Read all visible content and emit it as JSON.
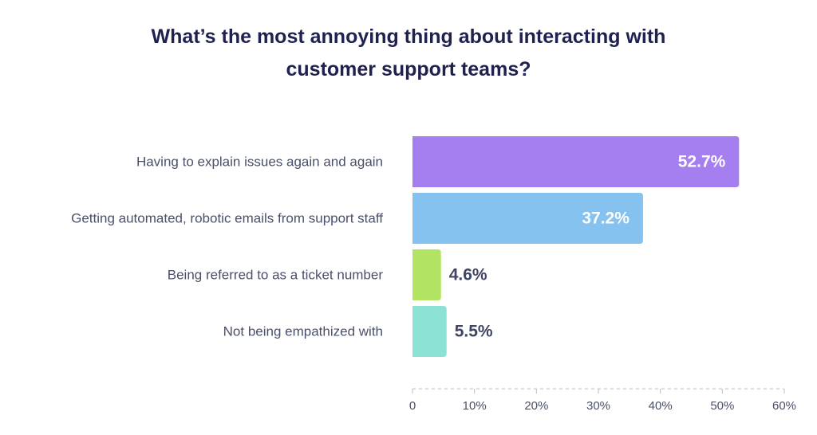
{
  "chart_data": {
    "type": "bar",
    "orientation": "horizontal",
    "title": "What’s the most annoying thing about interacting with customer support teams?",
    "title_lines": [
      "What’s the most annoying thing about interacting with",
      "customer support teams?"
    ],
    "categories": [
      "Having to explain issues again and again",
      "Getting automated, robotic emails from support staff",
      "Being referred to as a ticket number",
      "Not being empathized with"
    ],
    "values": [
      52.7,
      37.2,
      4.6,
      5.5
    ],
    "value_labels": [
      "52.7%",
      "37.2%",
      "4.6%",
      "5.5%"
    ],
    "value_label_placement": [
      "inside",
      "inside",
      "outside",
      "outside"
    ],
    "colors": [
      "#a57ef0",
      "#86c2f0",
      "#b2e362",
      "#8ce2d4"
    ],
    "inside_label_color": "#ffffff",
    "outside_label_color": "#3f4463",
    "xlim": [
      0,
      60
    ],
    "x_ticks": [
      0,
      10,
      20,
      30,
      40,
      50,
      60
    ],
    "x_tick_labels": [
      "0",
      "10%",
      "20%",
      "30%",
      "40%",
      "50%",
      "60%"
    ],
    "grid": false,
    "legend": "none",
    "xlabel": "",
    "ylabel": ""
  }
}
